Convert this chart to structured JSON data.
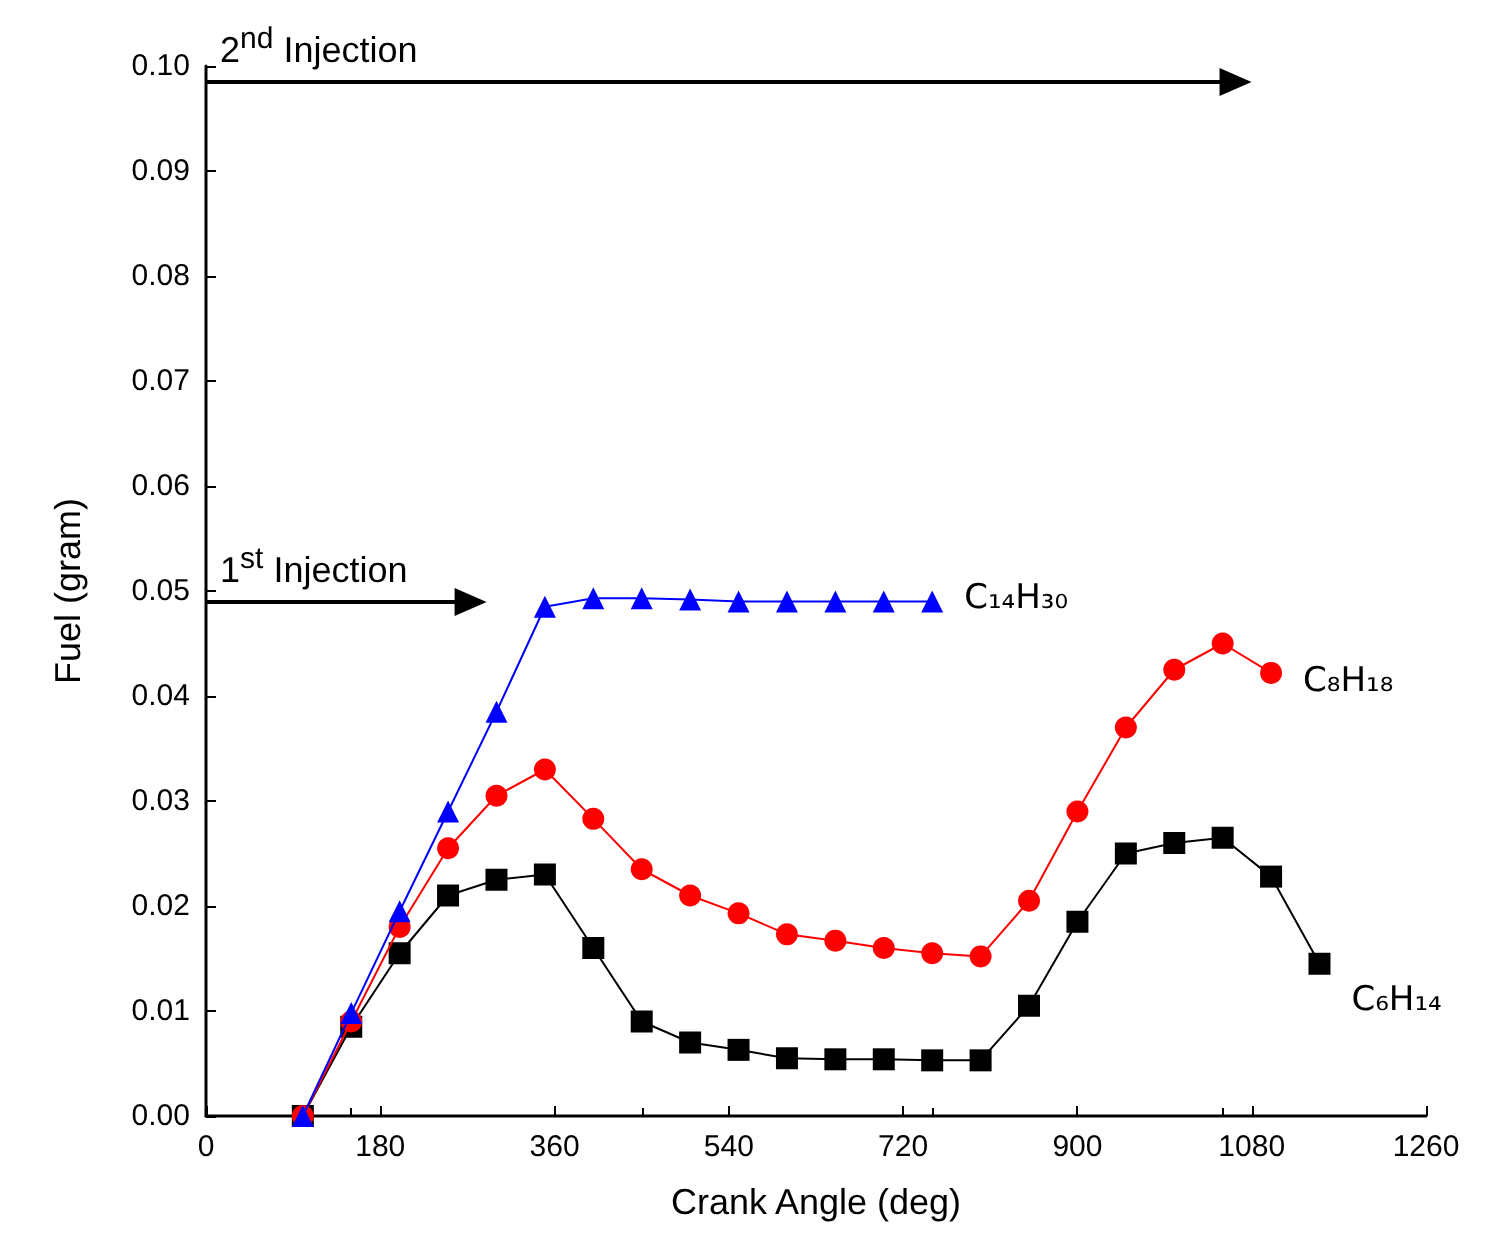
{
  "chart_data": {
    "type": "line",
    "xlabel": "Crank Angle (deg)",
    "ylabel": "Fuel (gram)",
    "xlim": [
      0,
      1260
    ],
    "xticks": [
      0,
      180,
      360,
      540,
      720,
      900,
      1080,
      1260
    ],
    "ylim": [
      0,
      0.1
    ],
    "yticks": [
      {
        "value": 0,
        "label": "0.00"
      },
      {
        "value": 0.01,
        "label": "0.01"
      },
      {
        "value": 0.02,
        "label": "0.02"
      },
      {
        "value": 0.03,
        "label": "0.03"
      },
      {
        "value": 0.04,
        "label": "0.04"
      },
      {
        "value": 0.05,
        "label": "0.05"
      },
      {
        "value": 0.06,
        "label": "0.06"
      },
      {
        "value": 0.07,
        "label": "0.07"
      },
      {
        "value": 0.08,
        "label": "0.08"
      },
      {
        "value": 0.09,
        "label": "0.09"
      },
      {
        "value": 0.1,
        "label": "0.10"
      }
    ],
    "grid": false,
    "legend": false,
    "line_style": "solid",
    "series": [
      {
        "name": "C₁₄H₃₀",
        "color": "#0000ff",
        "marker": "triangle",
        "x": [
          100,
          150,
          200,
          250,
          300,
          350,
          400,
          450,
          500,
          550,
          600,
          650,
          700,
          750
        ],
        "values": [
          0,
          0.0098,
          0.0195,
          0.029,
          0.0385,
          0.0485,
          0.0493,
          0.0493,
          0.0492,
          0.049,
          0.049,
          0.049,
          0.049,
          0.049
        ]
      },
      {
        "name": "C₈H₁₈",
        "color": "#ff0000",
        "marker": "circle",
        "x": [
          100,
          150,
          200,
          250,
          300,
          350,
          400,
          450,
          500,
          550,
          600,
          650,
          700,
          750,
          800,
          850,
          900,
          950,
          1000,
          1050,
          1100
        ],
        "values": [
          0,
          0.009,
          0.018,
          0.0255,
          0.0305,
          0.033,
          0.0283,
          0.0235,
          0.021,
          0.0193,
          0.0173,
          0.0167,
          0.016,
          0.0155,
          0.0152,
          0.0205,
          0.029,
          0.037,
          0.0425,
          0.045,
          0.0422
        ]
      },
      {
        "name": "C₆H₁₄",
        "color": "#000000",
        "marker": "square",
        "x": [
          100,
          150,
          200,
          250,
          300,
          350,
          400,
          450,
          500,
          550,
          600,
          650,
          700,
          750,
          800,
          850,
          900,
          950,
          1000,
          1050,
          1100,
          1150
        ],
        "values": [
          0,
          0.0085,
          0.0155,
          0.021,
          0.0225,
          0.023,
          0.016,
          0.009,
          0.007,
          0.0063,
          0.0055,
          0.0054,
          0.0054,
          0.0053,
          0.0053,
          0.0105,
          0.0185,
          0.025,
          0.026,
          0.0265,
          0.0228,
          0.0145
        ]
      }
    ],
    "annotations": [
      "1$^{st}$ Injection",
      "2$^{nd}$ Injection"
    ]
  }
}
